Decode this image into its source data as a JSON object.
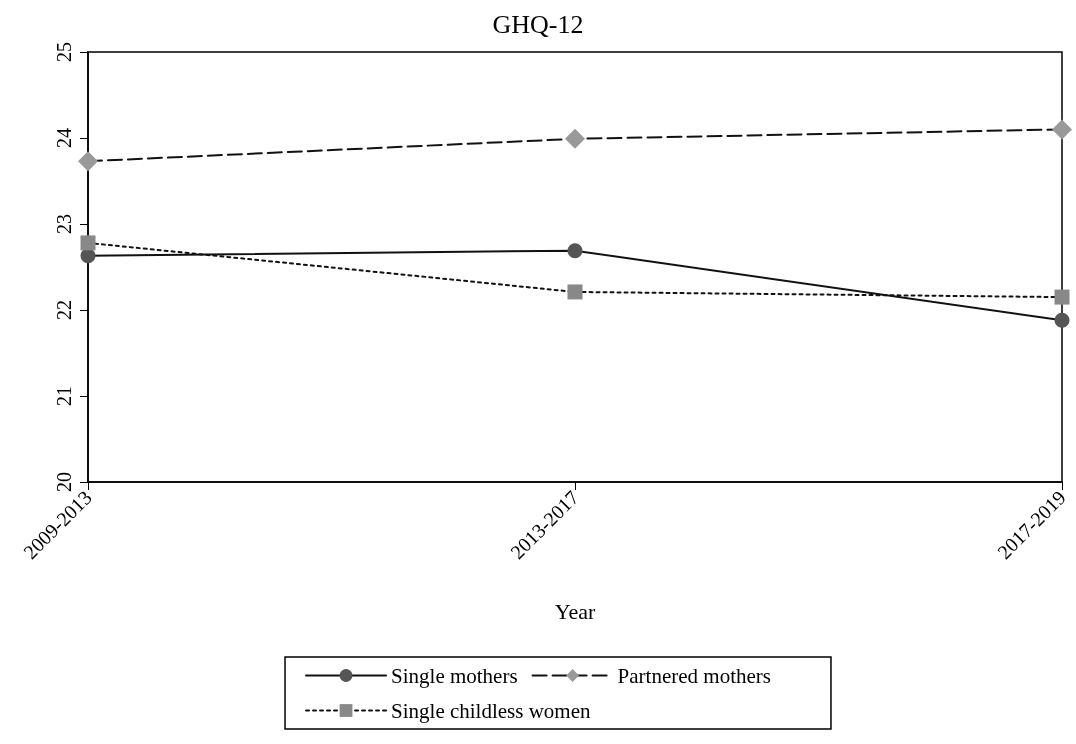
{
  "chart_data": {
    "type": "line",
    "title": "GHQ-12",
    "xlabel": "Year",
    "categories": [
      "2009-2013",
      "2013-2017",
      "2017-2019"
    ],
    "ylim": [
      20,
      25
    ],
    "yticks": [
      20,
      21,
      22,
      23,
      24,
      25
    ],
    "grid": false,
    "legend": "bottom",
    "series": [
      {
        "name": "Single mothers",
        "color": "#555555",
        "marker": "circle",
        "line_style": "solid",
        "values": [
          22.63,
          22.69,
          21.88
        ]
      },
      {
        "name": "Partnered mothers",
        "color": "#999999",
        "marker": "diamond",
        "line_style": "dashed",
        "values": [
          23.73,
          23.99,
          24.1
        ]
      },
      {
        "name": "Single childless women",
        "color": "#888888",
        "marker": "square",
        "line_style": "dotted",
        "values": [
          22.78,
          22.21,
          22.15
        ]
      }
    ]
  }
}
